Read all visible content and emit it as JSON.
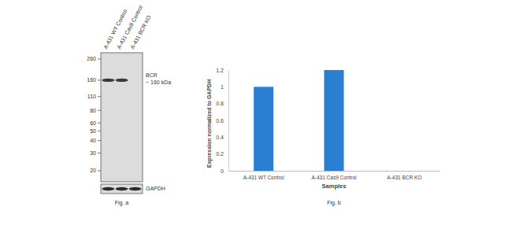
{
  "chart_data": {
    "type": "bar",
    "x_label": "Samples",
    "y_label": "Expression normalized to GAPDH",
    "categories": [
      "A-431 WT Control",
      "A-431 Cas9 Control",
      "A-431 BCR KO"
    ],
    "values": [
      1,
      1.2,
      0
    ],
    "color": "#2b7fd2",
    "ylim": [
      0,
      1.2
    ],
    "yticks": [
      0,
      0.2,
      0.4,
      0.6,
      0.8,
      1,
      1.2
    ],
    "grid": false,
    "annotations": [
      "Fig. b"
    ]
  },
  "blot": {
    "lanes": [
      "A-431 WT Control",
      "A-431 Cas9 Control",
      "A-431 BCR KO"
    ],
    "markers": [
      260,
      160,
      110,
      80,
      60,
      50,
      40,
      30,
      20
    ],
    "target": {
      "label": "BCR",
      "size": "~ 160 kDa",
      "kda": 160,
      "present": [
        true,
        true,
        false
      ]
    },
    "loading_control": "GAPDH",
    "caption": "Fig. a"
  }
}
